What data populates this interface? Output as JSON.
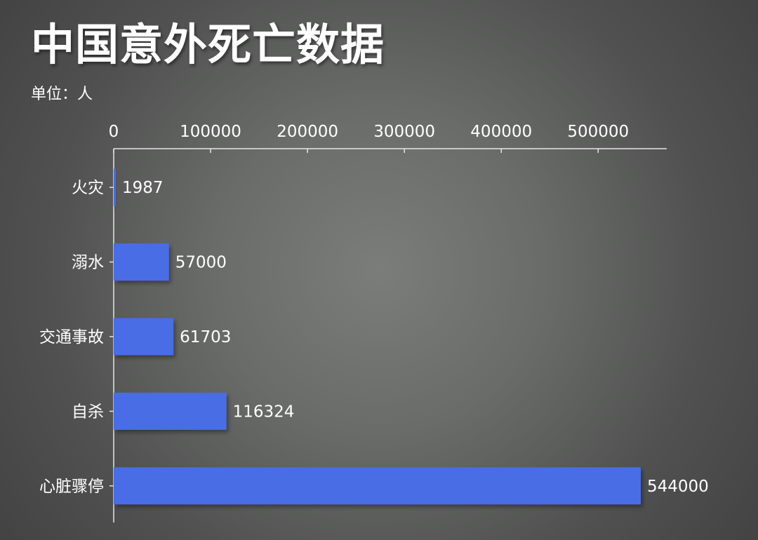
{
  "title": "中国意外死亡数据",
  "unit_label": "单位：人",
  "colors": {
    "bar": "#4a6de5",
    "axis": "#e6e6e6",
    "text": "#ffffff"
  },
  "chart_data": {
    "type": "bar",
    "orientation": "horizontal",
    "categories": [
      "火灾",
      "溺水",
      "交通事故",
      "自杀",
      "心脏骤停"
    ],
    "values": [
      1987,
      57000,
      61703,
      116324,
      544000
    ],
    "xlim": [
      0,
      570000
    ],
    "x_ticks": [
      0,
      100000,
      200000,
      300000,
      400000,
      500000
    ],
    "x_axis_position": "top",
    "grid": false,
    "legend": "none",
    "data_labels": true
  }
}
